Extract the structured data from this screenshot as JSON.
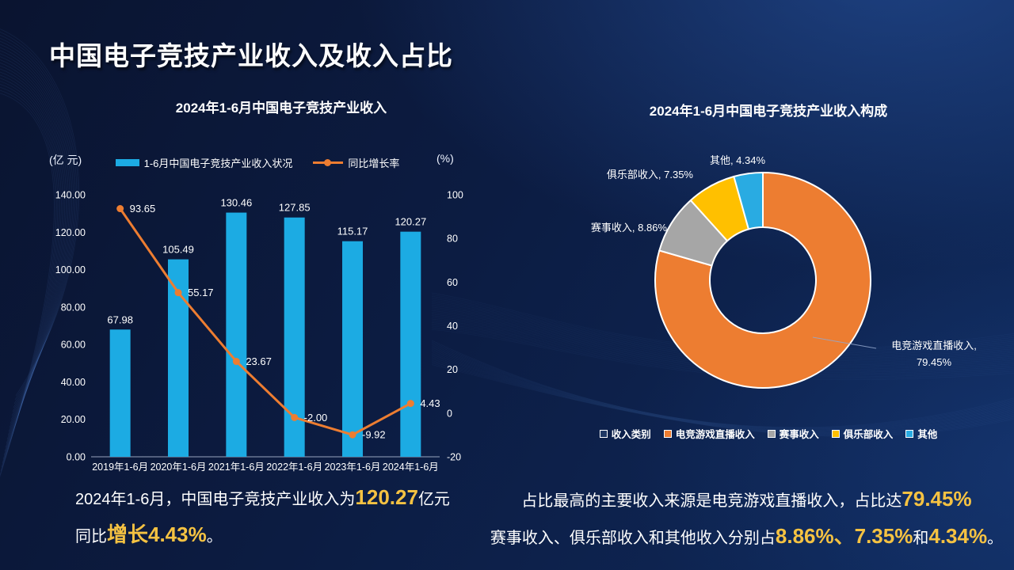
{
  "page": {
    "title": "中国电子竞技产业收入及收入占比"
  },
  "colors": {
    "bar_blue": "#1CABE3",
    "line_orange": "#ED7D31",
    "pie_orange": "#ED7D31",
    "pie_gray": "#A6A6A6",
    "pie_yellow": "#FFC000",
    "pie_blue": "#29ABE2",
    "legend_navy": "#1F3864",
    "highlight_yellow": "#F5C242",
    "background_navy": "#0C1C42"
  },
  "chart_data": [
    {
      "type": "bar",
      "title": "2024年1-6月中国电子竞技产业收入",
      "unit_left": "(亿 元)",
      "unit_right": "(%)",
      "categories": [
        "2019年1-6月",
        "2020年1-6月",
        "2021年1-6月",
        "2022年1-6月",
        "2023年1-6月",
        "2024年1-6月"
      ],
      "series": [
        {
          "name": "1-6月中国电子竞技产业收入状况",
          "chart": "bar",
          "axis": "left",
          "color": "#1CABE3",
          "values": [
            67.98,
            105.49,
            130.46,
            127.85,
            115.17,
            120.27
          ]
        },
        {
          "name": "同比增长率",
          "chart": "line",
          "axis": "right",
          "color": "#ED7D31",
          "values": [
            93.65,
            55.17,
            23.67,
            -2,
            -9.92,
            4.43
          ]
        }
      ],
      "ylim_left": [
        0,
        140
      ],
      "ylim_right": [
        -20,
        100
      ],
      "yticks_left": [
        140,
        120,
        100,
        80,
        60,
        40,
        20,
        0
      ],
      "yticks_right": [
        100,
        80,
        60,
        40,
        20,
        0,
        -20
      ],
      "grid": false,
      "legend_position": "top",
      "data_labels": true
    },
    {
      "type": "pie",
      "donut": true,
      "title": "2024年1-6月中国电子竞技产业收入构成",
      "series_name": "收入类别",
      "slices": [
        {
          "label": "电竞游戏直播收入",
          "value": 79.45,
          "color": "#ED7D31"
        },
        {
          "label": "赛事收入",
          "value": 8.86,
          "color": "#A6A6A6"
        },
        {
          "label": "俱乐部收入",
          "value": 7.35,
          "color": "#FFC000"
        },
        {
          "label": "其他",
          "value": 4.34,
          "color": "#29ABE2"
        }
      ],
      "legend": [
        {
          "label": "收入类别",
          "color": "#1F3864"
        },
        {
          "label": "电竞游戏直播收入",
          "color": "#ED7D31"
        },
        {
          "label": "赛事收入",
          "color": "#A6A6A6"
        },
        {
          "label": "俱乐部收入",
          "color": "#FFC000"
        },
        {
          "label": "其他",
          "color": "#29ABE2"
        }
      ],
      "legend_position": "bottom"
    }
  ],
  "summaries": {
    "left": {
      "lines": [
        [
          {
            "t": "2024年1-6月，中国电子竞技产业收入为",
            "h": false
          },
          {
            "t": "120.27",
            "h": true
          },
          {
            "t": "亿元",
            "h": false
          }
        ],
        [
          {
            "t": "同比",
            "h": false
          },
          {
            "t": "增长4.43%",
            "h": true
          },
          {
            "t": "。",
            "h": false
          }
        ]
      ]
    },
    "right": {
      "lines": [
        [
          {
            "t": "占比最高的主要收入来源是电竞游戏直播收入，占比达",
            "h": false
          },
          {
            "t": "79.45%",
            "h": true
          }
        ],
        [
          {
            "t": "赛事收入、俱乐部收入和其他收入分别占",
            "h": false
          },
          {
            "t": "8.86%、",
            "h": true
          },
          {
            "t": "7.35%",
            "h": true
          },
          {
            "t": "和",
            "h": false
          },
          {
            "t": "4.34%",
            "h": true
          },
          {
            "t": "。",
            "h": false
          }
        ]
      ]
    }
  }
}
